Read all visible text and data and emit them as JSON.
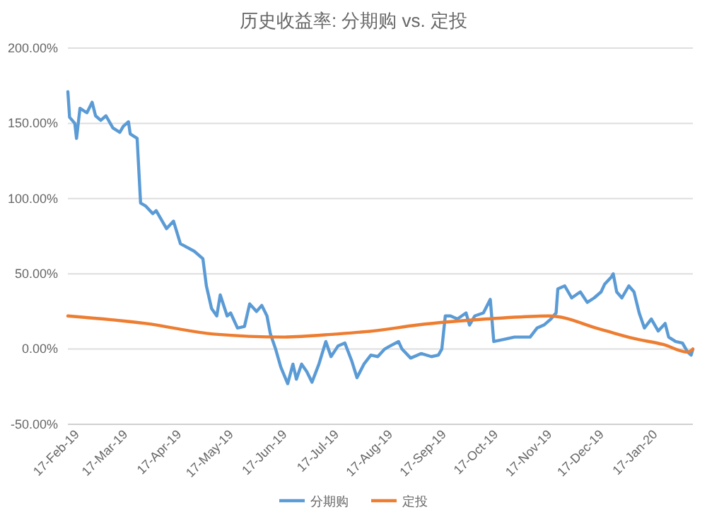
{
  "chart_data": {
    "type": "line",
    "title": "历史收益率: 分期购 vs. 定投",
    "xlim": [
      "2019-02-15",
      "2020-02-11"
    ],
    "xticks": [
      {
        "value": "2019-02-17",
        "label": "17-Feb-19"
      },
      {
        "value": "2019-03-17",
        "label": "17-Mar-19"
      },
      {
        "value": "2019-04-17",
        "label": "17-Apr-19"
      },
      {
        "value": "2019-05-17",
        "label": "17-May-19"
      },
      {
        "value": "2019-06-17",
        "label": "17-Jun-19"
      },
      {
        "value": "2019-07-17",
        "label": "17-Jul-19"
      },
      {
        "value": "2019-08-17",
        "label": "17-Aug-19"
      },
      {
        "value": "2019-09-17",
        "label": "17-Sep-19"
      },
      {
        "value": "2019-10-17",
        "label": "17-Oct-19"
      },
      {
        "value": "2019-11-17",
        "label": "17-Nov-19"
      },
      {
        "value": "2019-12-17",
        "label": "17-Dec-19"
      },
      {
        "value": "2020-01-17",
        "label": "17-Jan-20"
      }
    ],
    "ylim": [
      -50,
      200
    ],
    "yticks": [
      {
        "value": -50,
        "label": "-50.00%"
      },
      {
        "value": 0,
        "label": "0.00%"
      },
      {
        "value": 50,
        "label": "50.00%"
      },
      {
        "value": 100,
        "label": "100.00%"
      },
      {
        "value": 150,
        "label": "150.00%"
      },
      {
        "value": 200,
        "label": "200.00%"
      }
    ],
    "grid": "y",
    "legend": "bottom",
    "line_style": "solid",
    "series": [
      {
        "name": "分期购",
        "color": "#5b9bd5",
        "x": [
          "2019-02-15",
          "2019-02-16",
          "2019-02-19",
          "2019-02-20",
          "2019-02-22",
          "2019-02-26",
          "2019-03-01",
          "2019-03-03",
          "2019-03-06",
          "2019-03-09",
          "2019-03-13",
          "2019-03-17",
          "2019-03-19",
          "2019-03-22",
          "2019-03-23",
          "2019-03-27",
          "2019-03-29",
          "2019-04-01",
          "2019-04-05",
          "2019-04-07",
          "2019-04-13",
          "2019-04-17",
          "2019-04-21",
          "2019-04-29",
          "2019-05-04",
          "2019-05-06",
          "2019-05-09",
          "2019-05-12",
          "2019-05-14",
          "2019-05-18",
          "2019-05-20",
          "2019-05-24",
          "2019-05-28",
          "2019-05-31",
          "2019-06-04",
          "2019-06-07",
          "2019-06-10",
          "2019-06-12",
          "2019-06-15",
          "2019-06-18",
          "2019-06-22",
          "2019-06-25",
          "2019-06-27",
          "2019-06-30",
          "2019-07-03",
          "2019-07-06",
          "2019-07-10",
          "2019-07-14",
          "2019-07-17",
          "2019-07-21",
          "2019-07-25",
          "2019-07-28",
          "2019-07-29",
          "2019-08-01",
          "2019-08-05",
          "2019-08-09",
          "2019-08-13",
          "2019-08-17",
          "2019-08-20",
          "2019-08-25",
          "2019-08-27",
          "2019-09-01",
          "2019-09-07",
          "2019-09-13",
          "2019-09-17",
          "2019-09-19",
          "2019-09-21",
          "2019-09-24",
          "2019-09-28",
          "2019-10-03",
          "2019-10-05",
          "2019-10-08",
          "2019-10-13",
          "2019-10-17",
          "2019-10-19",
          "2019-10-23",
          "2019-10-31",
          "2019-11-09",
          "2019-11-13",
          "2019-11-17",
          "2019-11-21",
          "2019-11-24",
          "2019-11-25",
          "2019-11-29",
          "2019-12-03",
          "2019-12-08",
          "2019-12-12",
          "2019-12-16",
          "2019-12-20",
          "2019-12-22",
          "2019-12-26",
          "2019-12-27",
          "2019-12-29",
          "2020-01-01",
          "2020-01-05",
          "2020-01-08",
          "2020-01-11",
          "2020-01-14",
          "2020-01-18",
          "2020-01-22",
          "2020-01-26",
          "2020-01-28",
          "2020-02-01",
          "2020-02-05",
          "2020-02-08",
          "2020-02-10",
          "2020-02-11"
        ],
        "values": [
          171,
          154,
          150,
          140,
          160,
          157,
          164,
          155,
          152,
          155,
          147,
          144,
          148,
          151,
          143,
          140,
          97,
          95,
          90,
          92,
          80,
          85,
          70,
          65,
          60,
          42,
          27,
          22,
          36,
          22,
          24,
          14,
          15,
          30,
          25,
          29,
          22,
          10,
          0,
          -12,
          -23,
          -10,
          -20,
          -10,
          -15,
          -22,
          -10,
          5,
          -5,
          2,
          4,
          -5,
          -8,
          -19,
          -10,
          -4,
          -5,
          0,
          2,
          5,
          0,
          -6,
          -3,
          -5,
          -4,
          0,
          22,
          22,
          20,
          24,
          16,
          22,
          24,
          33,
          5,
          6,
          8,
          8,
          14,
          16,
          20,
          24,
          40,
          42,
          34,
          38,
          31,
          34,
          38,
          43,
          48,
          50,
          38,
          34,
          42,
          38,
          24,
          14,
          20,
          12,
          17,
          8,
          5,
          4,
          -2,
          -4,
          0
        ]
      },
      {
        "name": "定投",
        "color": "#ed7d31",
        "x": [
          "2019-02-15",
          "2019-04-01",
          "2019-05-10",
          "2019-06-20",
          "2019-07-20",
          "2019-08-10",
          "2019-09-05",
          "2019-10-15",
          "2019-11-20",
          "2019-12-20",
          "2020-01-08",
          "2020-01-25",
          "2020-02-08",
          "2020-02-11"
        ],
        "values": [
          22,
          17,
          10,
          8,
          10,
          12,
          16,
          20,
          22,
          13,
          7,
          3,
          -2,
          0
        ]
      }
    ]
  }
}
